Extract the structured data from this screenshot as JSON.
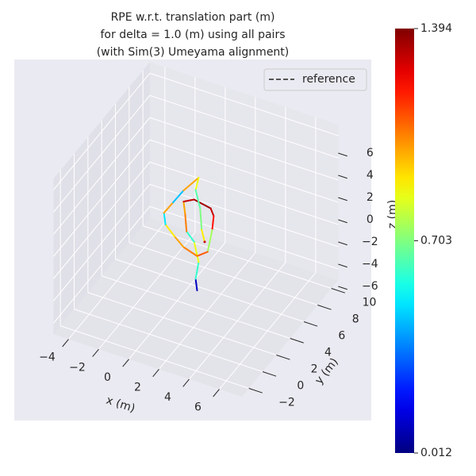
{
  "chart_data": {
    "type": "line3d",
    "title": [
      "RPE w.r.t. translation part (m)",
      "for delta = 1.0 (m) using all pairs",
      "(with Sim(3) Umeyama alignment)"
    ],
    "xlabel": "x (m)",
    "ylabel": "y (m)",
    "zlabel": "z (m)",
    "xlim": [
      -5,
      7.5
    ],
    "ylim": [
      -3,
      11
    ],
    "zlim": [
      -7,
      7
    ],
    "xticks": [
      {
        "value": -4,
        "label": "−4"
      },
      {
        "value": -2,
        "label": "−2"
      },
      0,
      2,
      4,
      6
    ],
    "yticks": [
      {
        "value": -2,
        "label": "−2"
      },
      0,
      2,
      4,
      6,
      8,
      10
    ],
    "zticks": [
      {
        "value": -6,
        "label": "−6"
      },
      {
        "value": -4,
        "label": "−4"
      },
      {
        "value": -2,
        "label": "−2"
      },
      0,
      2,
      4,
      6
    ],
    "grid": true,
    "legend": {
      "corner": "upper right",
      "entries": [
        {
          "name": "reference",
          "color": "#555555",
          "dash": true
        }
      ]
    },
    "colormap": "jet",
    "colorbar": {
      "lim": [
        0.012,
        1.394
      ],
      "ticks": [
        0.012,
        0.703,
        1.394
      ]
    },
    "series": [
      {
        "x": [
          2.7,
          2.6,
          2.8,
          2.5,
          2.0,
          1.9,
          1.8,
          2.5,
          3.6,
          3.8,
          3.7,
          3.4,
          2.7,
          1.8,
          1.2,
          0.6,
          0.5,
          1.1,
          1.8,
          2.8,
          2.6,
          2.9,
          3.0,
          3.2
        ],
        "y": [
          1,
          1,
          1,
          1,
          1,
          1,
          1,
          1,
          1,
          1,
          1,
          1,
          1,
          1,
          1,
          1,
          1,
          1,
          1,
          1,
          1,
          1,
          1,
          1
        ],
        "z": [
          -2.6,
          -1.6,
          0.0,
          1.7,
          2.4,
          4.0,
          5.0,
          5.5,
          5.2,
          4.6,
          3.3,
          1.2,
          0.5,
          0.9,
          1.6,
          2.4,
          3.4,
          4.6,
          6.0,
          7.6,
          6.4,
          4.9,
          3.0,
          2.0
        ],
        "rpe": [
          0.1,
          0.6,
          0.85,
          0.6,
          1.05,
          1.0,
          1.3,
          1.35,
          1.3,
          1.2,
          0.75,
          1.1,
          1.05,
          1.0,
          0.9,
          0.5,
          1.0,
          0.45,
          1.0,
          0.85,
          0.65,
          0.7,
          0.9,
          1.3
        ]
      }
    ]
  }
}
